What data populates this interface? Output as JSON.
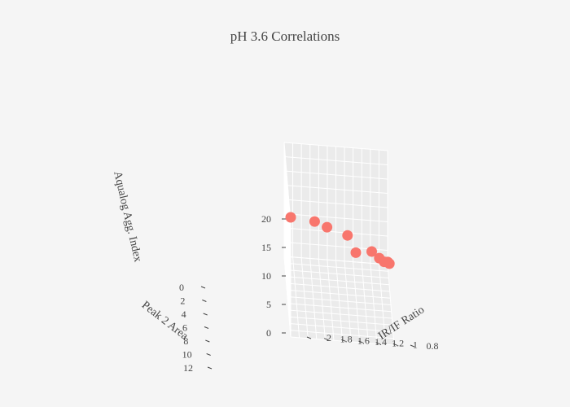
{
  "chart_data": {
    "type": "scatter",
    "projection": "3d",
    "title": "pH 3.6 Correlations",
    "axes": {
      "x": {
        "label": "Peak 2 Area",
        "range": [
          0,
          12
        ],
        "ticks": [
          "0",
          "2",
          "4",
          "6",
          "8",
          "10",
          "12"
        ]
      },
      "y": {
        "label": "IR/IF Ratio",
        "range": [
          0.8,
          2
        ],
        "ticks": [
          "0.8",
          "1",
          "1.2",
          "1.4",
          "1.6",
          "1.8",
          "2"
        ]
      },
      "z": {
        "label": "Aqualog Agg. Index",
        "range": [
          0,
          20
        ],
        "ticks": [
          "0",
          "5",
          "10",
          "15",
          "20"
        ]
      }
    },
    "series": [
      {
        "marker_color": "#f8766d",
        "points": [
          {
            "x": 0.1,
            "y": 0.78,
            "z": 0.3
          },
          {
            "x": 0.3,
            "y": 0.8,
            "z": 0.8
          },
          {
            "x": 0.5,
            "y": 0.9,
            "z": 1.6
          },
          {
            "x": 1.5,
            "y": 0.85,
            "z": 2.2
          },
          {
            "x": 2.5,
            "y": 1.0,
            "z": 5.0
          },
          {
            "x": 5.0,
            "y": 1.2,
            "z": 7.5
          },
          {
            "x": 5.5,
            "y": 1.3,
            "z": 11.0
          },
          {
            "x": 7.5,
            "y": 1.55,
            "z": 14.5
          },
          {
            "x": 8.5,
            "y": 1.7,
            "z": 16.5
          },
          {
            "x": 12.0,
            "y": 2.0,
            "z": 21.0
          }
        ]
      }
    ],
    "grid": true,
    "colors": {
      "background": "#f5f5f5",
      "pane": "#ebebeb",
      "grid": "#ffffff",
      "text": "#444444"
    }
  }
}
